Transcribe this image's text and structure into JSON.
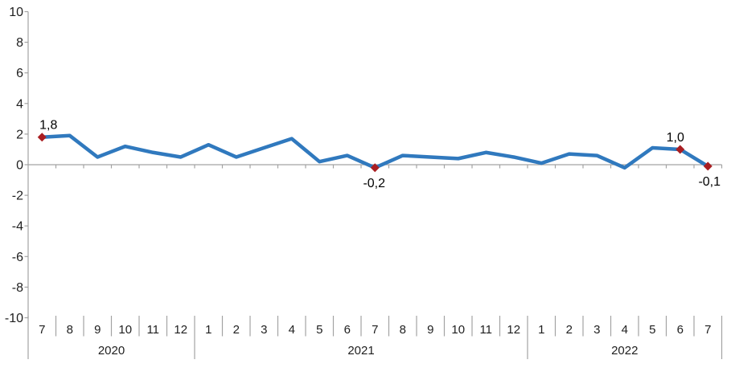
{
  "chart_data": {
    "type": "line",
    "title": "",
    "xlabel": "",
    "ylabel": "",
    "legend": "none",
    "grid": "zero-line-only",
    "ylim": [
      -10,
      10
    ],
    "y_ticks": [
      "10",
      "8",
      "6",
      "4",
      "2",
      "0",
      "-2",
      "-4",
      "-6",
      "-8",
      "-10"
    ],
    "x_months": [
      "7",
      "8",
      "9",
      "10",
      "11",
      "12",
      "1",
      "2",
      "3",
      "4",
      "5",
      "6",
      "7",
      "8",
      "9",
      "10",
      "11",
      "12",
      "1",
      "2",
      "3",
      "4",
      "5",
      "6",
      "7"
    ],
    "year_groups": [
      {
        "label": "2020",
        "months": 6
      },
      {
        "label": "2021",
        "months": 12
      },
      {
        "label": "2022",
        "months": 7
      }
    ],
    "values": [
      1.8,
      1.9,
      0.5,
      1.2,
      0.8,
      0.5,
      1.3,
      0.5,
      1.1,
      1.7,
      0.2,
      0.6,
      -0.2,
      0.6,
      0.5,
      0.4,
      0.8,
      0.5,
      0.1,
      0.7,
      0.6,
      -0.2,
      1.1,
      1.0,
      -0.1
    ],
    "point_labels": [
      {
        "index": 0,
        "text": "1,8",
        "position": "above",
        "dx": 8
      },
      {
        "index": 12,
        "text": "-0,2",
        "position": "below",
        "dx": -1
      },
      {
        "index": 23,
        "text": "1,0",
        "position": "above",
        "dx": -6
      },
      {
        "index": 24,
        "text": "-0,1",
        "position": "below",
        "dx": 2
      }
    ],
    "colors": {
      "line": "#3079BE",
      "marker": "#A91E22",
      "axis": "#A3A3A3",
      "axis_text": "#1F1F1F",
      "label_text": "#000000"
    }
  }
}
